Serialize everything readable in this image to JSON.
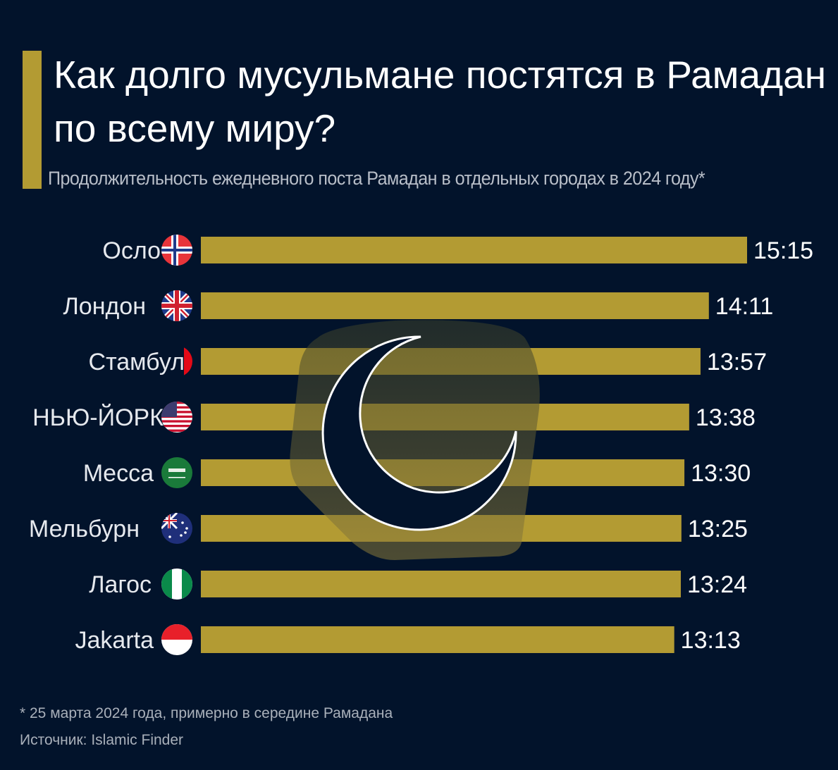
{
  "title": "Как долго мусульмане постятся в Рамадан по всему миру?",
  "subtitle": "Продолжительность ежедневного поста Рамадан в отдельных городах в 2024 году*",
  "footnote": "* 25 марта 2024 года, примерно в середине Рамадана",
  "source": "Источник: Islamic Finder",
  "colors": {
    "background": "#02132b",
    "bar": "#b39b33",
    "text": "#ffffff"
  },
  "chart_data": {
    "type": "bar",
    "orientation": "horizontal",
    "title": "Как долго мусульмане постятся в Рамадан по всему миру?",
    "xlabel": "",
    "ylabel": "",
    "unit": "minutes",
    "categories": [
      "Осло",
      "Лондон",
      "Стамбул",
      "НЬЮ-ЙОРК",
      "Mecca",
      "Мельбурн",
      "Лагос",
      "Jakarta"
    ],
    "labels": [
      "15:15",
      "14:11",
      "13:57",
      "13:38",
      "13:30",
      "13:25",
      "13:24",
      "13:13"
    ],
    "values": [
      915,
      851,
      837,
      818,
      810,
      805,
      804,
      793
    ],
    "flags": [
      "norway-flag",
      "uk-flag",
      "turkey-flag",
      "usa-flag",
      "saudi-flag",
      "australia-flag",
      "nigeria-flag",
      "indonesia-flag"
    ],
    "xlim": [
      0,
      915
    ]
  }
}
